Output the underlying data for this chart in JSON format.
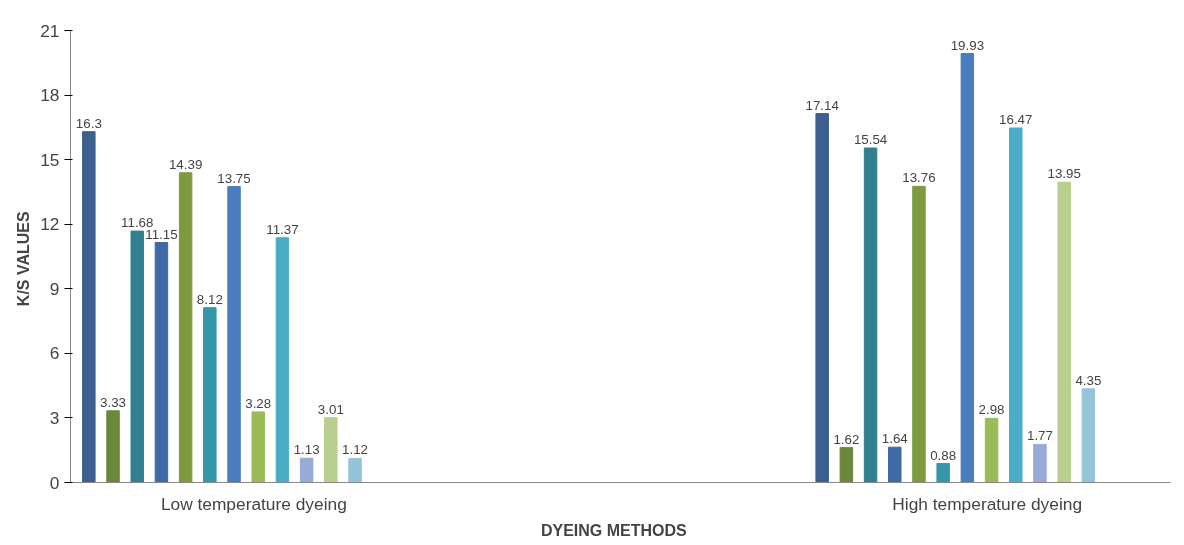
{
  "chart_data": {
    "type": "bar",
    "xlabel": "DYEING    METHODS",
    "ylabel": "K/S  VALUES",
    "categories": [
      "Low temperature dyeing",
      null,
      "High temperature dyeing"
    ],
    "series": [
      {
        "color": "#3b5f8e",
        "values": [
          16.3,
          null,
          17.14
        ]
      },
      {
        "color": "#6a873a",
        "values": [
          3.33,
          null,
          1.62
        ]
      },
      {
        "color": "#31808f",
        "values": [
          11.68,
          null,
          15.54
        ]
      },
      {
        "color": "#3f6aa6",
        "values": [
          11.15,
          null,
          1.64
        ]
      },
      {
        "color": "#7d9b3e",
        "values": [
          14.39,
          null,
          13.76
        ]
      },
      {
        "color": "#3397a8",
        "values": [
          8.12,
          null,
          0.88
        ]
      },
      {
        "color": "#4a7cc0",
        "values": [
          13.75,
          null,
          19.93
        ]
      },
      {
        "color": "#9bbb59",
        "values": [
          3.28,
          null,
          2.98
        ]
      },
      {
        "color": "#4bacc6",
        "values": [
          11.37,
          null,
          16.47
        ]
      },
      {
        "color": "#98aad6",
        "values": [
          1.13,
          null,
          1.77
        ]
      },
      {
        "color": "#b8cf8e",
        "values": [
          3.01,
          null,
          13.95
        ]
      },
      {
        "color": "#93c4d8",
        "values": [
          1.12,
          null,
          4.35
        ]
      }
    ],
    "ylim": [
      0,
      21
    ],
    "yticks": [
      0,
      3,
      6,
      9,
      12,
      15,
      18,
      21
    ],
    "data_labels": true,
    "grid": false
  }
}
